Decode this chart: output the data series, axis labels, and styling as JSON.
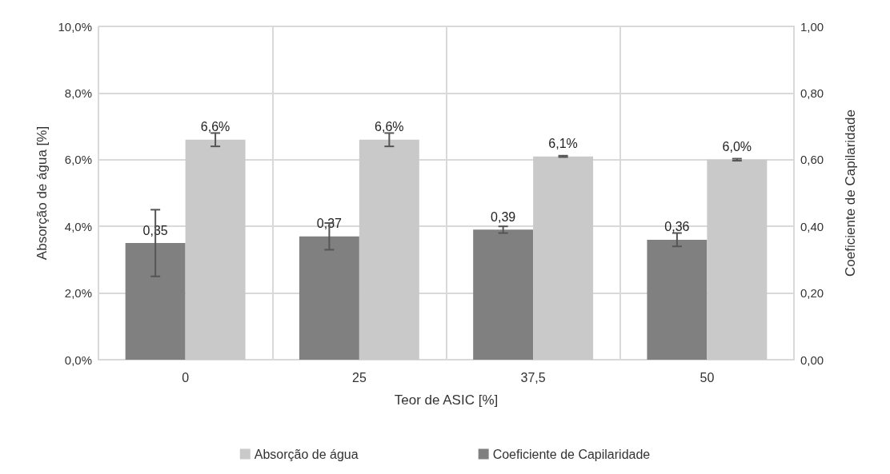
{
  "chart_data": {
    "type": "bar",
    "xlabel": "Teor de ASIC [%]",
    "ylabel": "Absorção de água [%]",
    "y2label": "Coeficiente de Capilaridade",
    "categories": [
      "0",
      "25",
      "37,5",
      "50"
    ],
    "series": [
      {
        "name": "Coeficiente de Capilaridade",
        "color": "#808080",
        "axis": "y2",
        "values": [
          0.35,
          0.37,
          0.39,
          0.36
        ],
        "errors": [
          0.1,
          0.04,
          0.01,
          0.02
        ],
        "value_labels": [
          "0,35",
          "0,37",
          "0,39",
          "0,36"
        ]
      },
      {
        "name": "Absorção de água",
        "color": "#c9c9c9",
        "values": [
          6.6,
          6.6,
          6.1,
          6.0
        ],
        "errors": [
          0.2,
          0.2,
          0.02,
          0.03
        ],
        "value_labels": [
          "6,6%",
          "6,6%",
          "6,1%",
          "6,0%"
        ]
      }
    ],
    "ylim": [
      0,
      10
    ],
    "yticks": [
      {
        "value": 0,
        "label": "0,0%"
      },
      {
        "value": 2,
        "label": "2,0%"
      },
      {
        "value": 4,
        "label": "4,0%"
      },
      {
        "value": 6,
        "label": "6,0%"
      },
      {
        "value": 8,
        "label": "8,0%"
      },
      {
        "value": 10,
        "label": "10,0%"
      }
    ],
    "y2lim": [
      0,
      1
    ],
    "y2ticks": [
      {
        "value": 0,
        "label": "0,00"
      },
      {
        "value": 0.2,
        "label": "0,20"
      },
      {
        "value": 0.4,
        "label": "0,40"
      },
      {
        "value": 0.6,
        "label": "0,60"
      },
      {
        "value": 0.8,
        "label": "0,80"
      },
      {
        "value": 1,
        "label": "1,00"
      }
    ],
    "grid": true,
    "legend": "bottom"
  }
}
